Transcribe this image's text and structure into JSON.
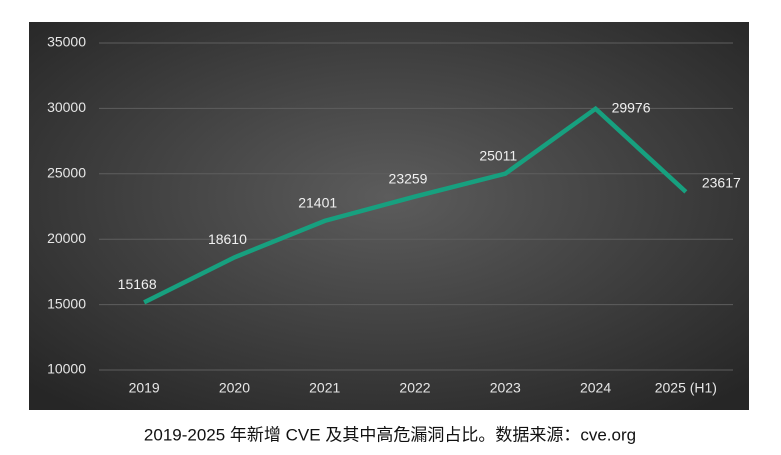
{
  "chart_data": {
    "type": "line",
    "categories": [
      "2019",
      "2020",
      "2021",
      "2022",
      "2023",
      "2024",
      "2025 (H1)"
    ],
    "series": [
      {
        "name": "CVE",
        "color": "#17a07f",
        "values": [
          15168,
          18610,
          21401,
          23259,
          25011,
          29976,
          23617
        ]
      }
    ],
    "ylim": [
      10000,
      35000
    ],
    "yticks": [
      10000,
      15000,
      20000,
      25000,
      30000,
      35000
    ],
    "grid": true,
    "caption": "2019-2025 年新增 CVE 及其中高危漏洞占比。数据来源：cve.org"
  }
}
